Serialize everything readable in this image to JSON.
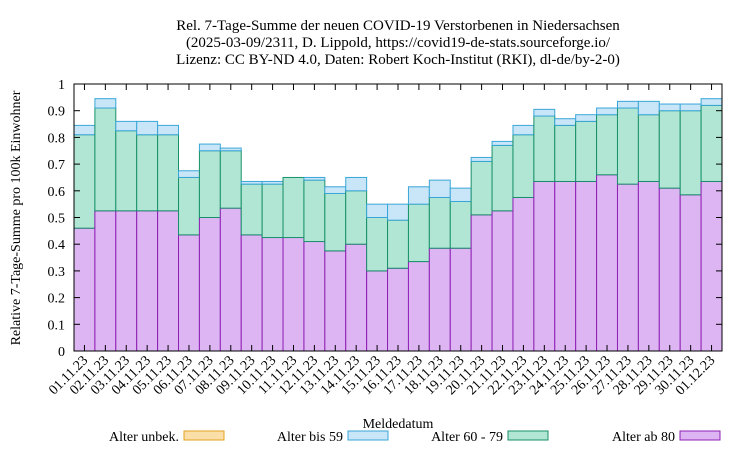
{
  "chart_data": {
    "type": "bar",
    "stacked": true,
    "title": [
      "Rel. 7-Tage-Summe der neuen COVID-19 Verstorbenen in Niedersachsen",
      "(2025-03-09/2311, D. Lippold, https://covid19-de-stats.sourceforge.io/",
      "Lizenz: CC BY-ND 4.0, Daten: Robert Koch-Institut (RKI), dl-de/by-2-0)"
    ],
    "xlabel": "Meldedatum",
    "ylabel": "Relative 7-Tage-Summe pro 100k Einwohner",
    "ylim": [
      0,
      1
    ],
    "yticks": [
      "0",
      "0.1",
      "0.2",
      "0.3",
      "0.4",
      "0.5",
      "0.6",
      "0.7",
      "0.8",
      "0.9",
      "1"
    ],
    "grid": false,
    "legend_position": "bottom",
    "categories": [
      "01.11.23",
      "02.11.23",
      "03.11.23",
      "04.11.23",
      "05.11.23",
      "06.11.23",
      "07.11.23",
      "08.11.23",
      "09.11.23",
      "10.11.23",
      "11.11.23",
      "12.11.23",
      "13.11.23",
      "14.11.23",
      "15.11.23",
      "16.11.23",
      "17.11.23",
      "18.11.23",
      "19.11.23",
      "20.11.23",
      "21.11.23",
      "22.11.23",
      "23.11.23",
      "24.11.23",
      "25.11.23",
      "26.11.23",
      "27.11.23",
      "28.11.23",
      "29.11.23",
      "30.11.23",
      "01.12.23"
    ],
    "series": [
      {
        "name": "Alter ab 80",
        "fill": "#dcb5f2",
        "stroke": "#8f1fb5",
        "values": [
          0.46,
          0.525,
          0.525,
          0.525,
          0.525,
          0.435,
          0.5,
          0.535,
          0.435,
          0.425,
          0.425,
          0.41,
          0.375,
          0.4,
          0.3,
          0.31,
          0.335,
          0.385,
          0.385,
          0.51,
          0.525,
          0.575,
          0.635,
          0.635,
          0.635,
          0.66,
          0.625,
          0.635,
          0.61,
          0.585,
          0.635
        ]
      },
      {
        "name": "Alter 60 - 79",
        "fill": "#b2e6d4",
        "stroke": "#17906a",
        "values": [
          0.35,
          0.385,
          0.3,
          0.285,
          0.285,
          0.215,
          0.25,
          0.215,
          0.19,
          0.2,
          0.225,
          0.23,
          0.215,
          0.2,
          0.2,
          0.18,
          0.215,
          0.19,
          0.175,
          0.2,
          0.245,
          0.235,
          0.245,
          0.21,
          0.225,
          0.225,
          0.285,
          0.25,
          0.29,
          0.315,
          0.285
        ]
      },
      {
        "name": "Alter bis 59",
        "fill": "#c8e6f8",
        "stroke": "#3aa6d8",
        "values": [
          0.035,
          0.035,
          0.035,
          0.05,
          0.035,
          0.025,
          0.025,
          0.01,
          0.01,
          0.01,
          0.0,
          0.01,
          0.025,
          0.05,
          0.05,
          0.06,
          0.065,
          0.065,
          0.05,
          0.015,
          0.015,
          0.035,
          0.025,
          0.025,
          0.025,
          0.025,
          0.025,
          0.05,
          0.025,
          0.025,
          0.025
        ]
      },
      {
        "name": "Alter unbek.",
        "fill": "#fae0a8",
        "stroke": "#e4a020",
        "values": [
          0,
          0,
          0,
          0,
          0,
          0,
          0,
          0,
          0,
          0,
          0,
          0,
          0,
          0,
          0,
          0,
          0,
          0,
          0,
          0,
          0,
          0,
          0,
          0,
          0,
          0,
          0,
          0,
          0,
          0,
          0
        ]
      }
    ],
    "legend_order": [
      "Alter unbek.",
      "Alter bis 59",
      "Alter 60 - 79",
      "Alter ab 80"
    ]
  }
}
